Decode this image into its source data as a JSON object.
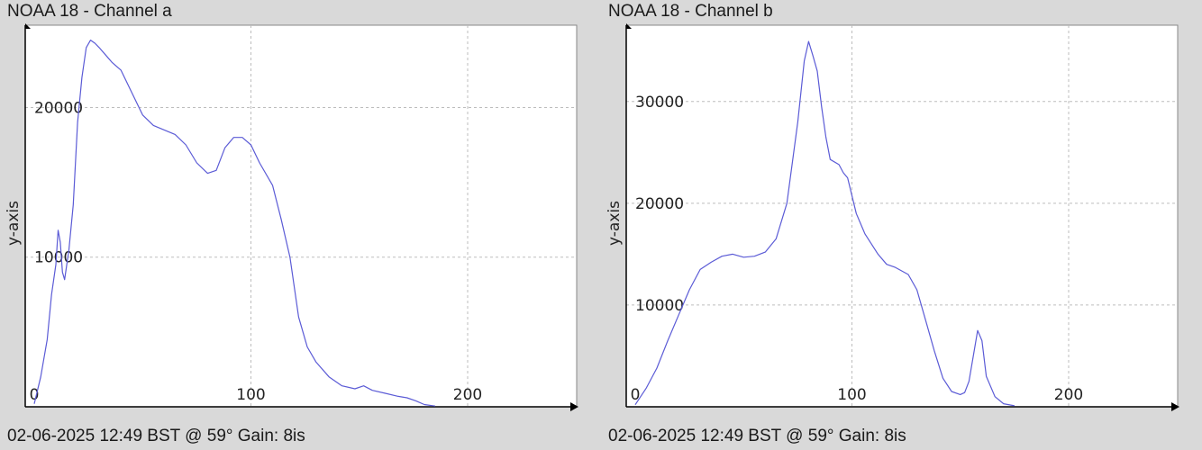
{
  "chart_data": [
    {
      "type": "line",
      "title": "NOAA 18 - Channel a",
      "footer": "02-06-2025 12:49 BST @ 59° Gain: 8is",
      "ylabel": "y-axis",
      "xlabel": "",
      "xlim": [
        0,
        250
      ],
      "ylim": [
        0,
        25500
      ],
      "x_ticks": [
        0,
        100,
        200
      ],
      "y_ticks": [
        10000,
        20000
      ],
      "grid": true,
      "line_color": "#5b5bd6",
      "series": [
        {
          "points": [
            [
              0,
              200
            ],
            [
              3,
              2000
            ],
            [
              6,
              4500
            ],
            [
              8,
              7500
            ],
            [
              10,
              9500
            ],
            [
              11,
              11800
            ],
            [
              12,
              11000
            ],
            [
              13,
              9000
            ],
            [
              14,
              8500
            ],
            [
              15,
              9500
            ],
            [
              16,
              10500
            ],
            [
              18,
              13500
            ],
            [
              20,
              19000
            ],
            [
              22,
              22000
            ],
            [
              24,
              24000
            ],
            [
              26,
              24500
            ],
            [
              28,
              24300
            ],
            [
              30,
              24000
            ],
            [
              33,
              23500
            ],
            [
              36,
              23000
            ],
            [
              40,
              22500
            ],
            [
              45,
              21000
            ],
            [
              50,
              19500
            ],
            [
              55,
              18800
            ],
            [
              60,
              18500
            ],
            [
              65,
              18200
            ],
            [
              70,
              17500
            ],
            [
              75,
              16300
            ],
            [
              80,
              15600
            ],
            [
              84,
              15800
            ],
            [
              88,
              17300
            ],
            [
              92,
              18000
            ],
            [
              96,
              18000
            ],
            [
              100,
              17500
            ],
            [
              104,
              16300
            ],
            [
              110,
              14800
            ],
            [
              114,
              12500
            ],
            [
              118,
              10000
            ],
            [
              122,
              6000
            ],
            [
              126,
              4000
            ],
            [
              130,
              3000
            ],
            [
              136,
              2000
            ],
            [
              142,
              1400
            ],
            [
              148,
              1200
            ],
            [
              152,
              1400
            ],
            [
              156,
              1100
            ],
            [
              162,
              900
            ],
            [
              168,
              700
            ],
            [
              172,
              600
            ],
            [
              176,
              400
            ],
            [
              180,
              150
            ],
            [
              185,
              50
            ]
          ]
        }
      ]
    },
    {
      "type": "line",
      "title": "NOAA 18 - Channel b",
      "footer": "02-06-2025 12:49 BST @ 59° Gain: 8is",
      "ylabel": "y-axis",
      "xlabel": "",
      "xlim": [
        0,
        250
      ],
      "ylim": [
        0,
        37500
      ],
      "x_ticks": [
        0,
        100,
        200
      ],
      "y_ticks": [
        10000,
        20000,
        30000
      ],
      "grid": true,
      "line_color": "#5b5bd6",
      "series": [
        {
          "points": [
            [
              0,
              200
            ],
            [
              5,
              1800
            ],
            [
              10,
              3800
            ],
            [
              15,
              6500
            ],
            [
              20,
              9000
            ],
            [
              25,
              11500
            ],
            [
              30,
              13500
            ],
            [
              35,
              14200
            ],
            [
              40,
              14800
            ],
            [
              45,
              15000
            ],
            [
              50,
              14700
            ],
            [
              55,
              14800
            ],
            [
              60,
              15200
            ],
            [
              65,
              16500
            ],
            [
              70,
              20000
            ],
            [
              75,
              28000
            ],
            [
              78,
              34000
            ],
            [
              80,
              35900
            ],
            [
              82,
              34500
            ],
            [
              84,
              33000
            ],
            [
              86,
              29500
            ],
            [
              88,
              26500
            ],
            [
              90,
              24300
            ],
            [
              94,
              23800
            ],
            [
              96,
              23000
            ],
            [
              98,
              22500
            ],
            [
              102,
              19000
            ],
            [
              106,
              17000
            ],
            [
              112,
              15000
            ],
            [
              116,
              14000
            ],
            [
              120,
              13700
            ],
            [
              126,
              13000
            ],
            [
              130,
              11500
            ],
            [
              134,
              8500
            ],
            [
              138,
              5500
            ],
            [
              142,
              2800
            ],
            [
              146,
              1500
            ],
            [
              150,
              1200
            ],
            [
              152,
              1400
            ],
            [
              154,
              2500
            ],
            [
              156,
              5000
            ],
            [
              158,
              7500
            ],
            [
              160,
              6500
            ],
            [
              162,
              3000
            ],
            [
              166,
              1000
            ],
            [
              170,
              300
            ],
            [
              175,
              100
            ]
          ]
        }
      ]
    }
  ]
}
